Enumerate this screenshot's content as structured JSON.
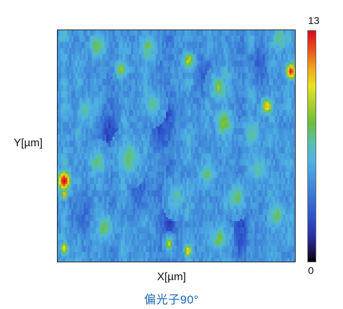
{
  "caption": "偏光子90°",
  "chart_data": {
    "type": "heatmap",
    "title": "",
    "xlabel": "X[µm]",
    "ylabel": "Y[µm]",
    "colorbar": {
      "min": 0,
      "max": 13,
      "min_label": "0",
      "max_label": "13"
    },
    "base_level": 4.6,
    "vertical_streaks": [
      {
        "x": 0.03,
        "amp": 1.2
      },
      {
        "x": 0.09,
        "amp": 0.9
      },
      {
        "x": 0.17,
        "amp": 0.8
      },
      {
        "x": 0.28,
        "amp": 1.0
      },
      {
        "x": 0.37,
        "amp": 0.9
      },
      {
        "x": 0.47,
        "amp": -0.8
      },
      {
        "x": 0.55,
        "amp": 1.1
      },
      {
        "x": 0.63,
        "amp": 0.8
      },
      {
        "x": 0.71,
        "amp": 0.9
      },
      {
        "x": 0.81,
        "amp": 1.0
      },
      {
        "x": 0.9,
        "amp": 0.8
      },
      {
        "x": 0.97,
        "amp": 1.0
      },
      {
        "x": 0.23,
        "amp": -0.7
      },
      {
        "x": 0.43,
        "amp": -0.6
      },
      {
        "x": 0.77,
        "amp": -0.7
      }
    ],
    "hotspots": [
      {
        "x": 0.03,
        "y": 0.65,
        "value": 13.0,
        "r": 0.025
      },
      {
        "x": 0.03,
        "y": 0.71,
        "value": 11.0,
        "r": 0.012
      },
      {
        "x": 0.03,
        "y": 0.94,
        "value": 10.0,
        "r": 0.015
      },
      {
        "x": 0.98,
        "y": 0.18,
        "value": 12.5,
        "r": 0.02
      },
      {
        "x": 0.88,
        "y": 0.33,
        "value": 10.5,
        "r": 0.02
      },
      {
        "x": 0.55,
        "y": 0.95,
        "value": 10.5,
        "r": 0.015
      },
      {
        "x": 0.47,
        "y": 0.92,
        "value": 9.5,
        "r": 0.015
      },
      {
        "x": 0.55,
        "y": 0.13,
        "value": 9.0,
        "r": 0.02
      },
      {
        "x": 0.27,
        "y": 0.17,
        "value": 8.0,
        "r": 0.022
      },
      {
        "x": 0.17,
        "y": 0.07,
        "value": 7.5,
        "r": 0.03
      },
      {
        "x": 0.38,
        "y": 0.08,
        "value": 7.5,
        "r": 0.03
      },
      {
        "x": 0.68,
        "y": 0.25,
        "value": 8.0,
        "r": 0.03
      },
      {
        "x": 0.7,
        "y": 0.4,
        "value": 8.0,
        "r": 0.03
      },
      {
        "x": 0.3,
        "y": 0.55,
        "value": 7.5,
        "r": 0.04
      },
      {
        "x": 0.17,
        "y": 0.57,
        "value": 7.5,
        "r": 0.03
      },
      {
        "x": 0.82,
        "y": 0.45,
        "value": 7.0,
        "r": 0.03
      },
      {
        "x": 0.63,
        "y": 0.62,
        "value": 7.0,
        "r": 0.03
      },
      {
        "x": 0.75,
        "y": 0.72,
        "value": 7.5,
        "r": 0.03
      },
      {
        "x": 0.92,
        "y": 0.8,
        "value": 7.5,
        "r": 0.03
      },
      {
        "x": 0.2,
        "y": 0.85,
        "value": 7.5,
        "r": 0.03
      },
      {
        "x": 0.68,
        "y": 0.9,
        "value": 7.5,
        "r": 0.03
      },
      {
        "x": 0.93,
        "y": 0.04,
        "value": 7.0,
        "r": 0.03
      },
      {
        "x": 0.4,
        "y": 0.32,
        "value": 6.8,
        "r": 0.03
      },
      {
        "x": 0.12,
        "y": 0.35,
        "value": 6.8,
        "r": 0.03
      },
      {
        "x": 0.5,
        "y": 0.72,
        "value": 6.8,
        "r": 0.03
      },
      {
        "x": 0.85,
        "y": 0.6,
        "value": 6.8,
        "r": 0.03
      }
    ],
    "lowspots": [
      {
        "x": 0.22,
        "y": 0.45,
        "value": 2.5,
        "r": 0.05
      },
      {
        "x": 0.44,
        "y": 0.4,
        "value": 2.8,
        "r": 0.05
      },
      {
        "x": 0.47,
        "y": 0.8,
        "value": 2.6,
        "r": 0.04
      },
      {
        "x": 0.77,
        "y": 0.85,
        "value": 2.8,
        "r": 0.05
      },
      {
        "x": 0.62,
        "y": 0.2,
        "value": 3.0,
        "r": 0.04
      },
      {
        "x": 0.85,
        "y": 0.15,
        "value": 3.0,
        "r": 0.04
      },
      {
        "x": 0.1,
        "y": 0.78,
        "value": 3.0,
        "r": 0.04
      },
      {
        "x": 0.35,
        "y": 0.7,
        "value": 3.0,
        "r": 0.04
      }
    ]
  }
}
